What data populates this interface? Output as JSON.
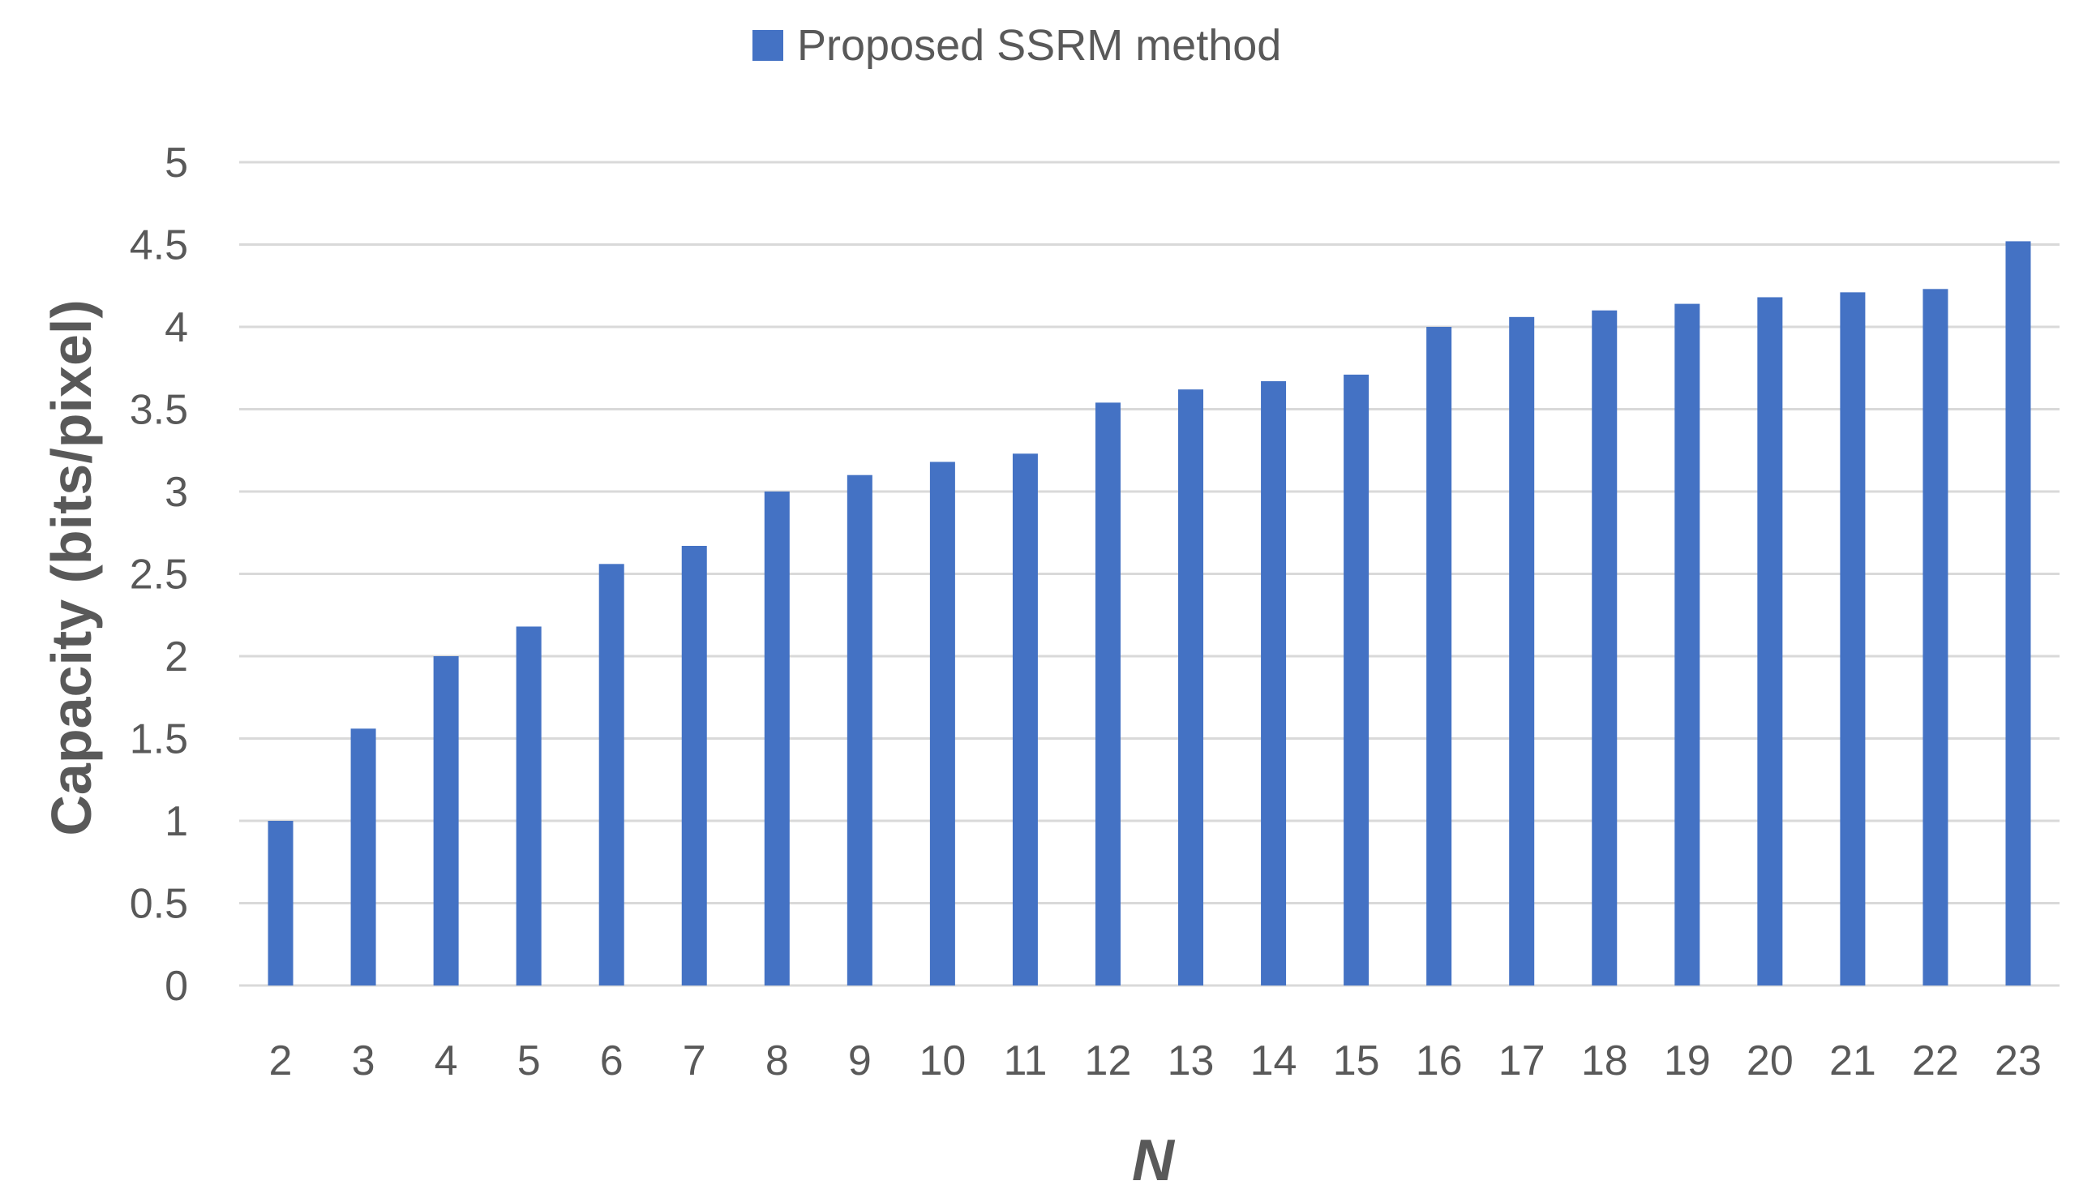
{
  "chart_data": {
    "type": "bar",
    "title": "",
    "xlabel": "N",
    "ylabel": "Capacity (bits/pixel)",
    "ylim": [
      0,
      5
    ],
    "y_ticks": [
      "0",
      "0.5",
      "1",
      "1.5",
      "2",
      "2.5",
      "3",
      "3.5",
      "4",
      "4.5",
      "5"
    ],
    "grid": true,
    "legend_position": "top-center",
    "categories": [
      "2",
      "3",
      "4",
      "5",
      "6",
      "7",
      "8",
      "9",
      "10",
      "11",
      "12",
      "13",
      "14",
      "15",
      "16",
      "17",
      "18",
      "19",
      "20",
      "21",
      "22",
      "23"
    ],
    "series": [
      {
        "name": "Proposed SSRM method",
        "color": "#4472C4",
        "values": [
          1.0,
          1.56,
          2.0,
          2.18,
          2.56,
          2.67,
          3.0,
          3.1,
          3.18,
          3.23,
          3.54,
          3.62,
          3.67,
          3.71,
          4.0,
          4.06,
          4.1,
          4.14,
          4.18,
          4.21,
          4.23,
          4.52
        ]
      }
    ]
  }
}
